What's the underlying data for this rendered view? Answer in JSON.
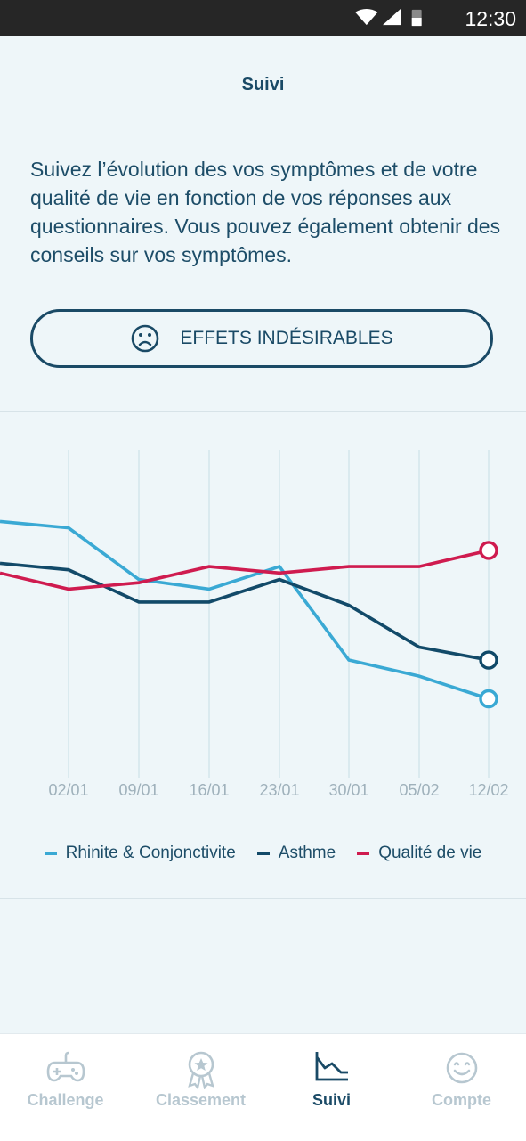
{
  "status_bar": {
    "time": "12:30"
  },
  "header": {
    "title": "Suivi"
  },
  "intro": {
    "text": "Suivez l’évolution des vos symptômes et de votre qualité de vie en fonction de vos réponses aux questionnaires. Vous pouvez également obtenir des conseils sur vos symptômes."
  },
  "effects_button": {
    "label": "EFFETS INDÉSIRABLES",
    "icon": "sad-face-icon"
  },
  "colors": {
    "rhinite": "#3aa9d4",
    "asthme": "#124a69",
    "qualite": "#cf1b4f",
    "grid": "#d3e6ec",
    "tick": "#9fb1bb"
  },
  "chart_data": {
    "type": "line",
    "categories": [
      "02/01",
      "09/01",
      "16/01",
      "23/01",
      "30/01",
      "05/02",
      "12/02"
    ],
    "series": [
      {
        "name": "Rhinite & Conjonctivite",
        "values": [
          7.8,
          6.2,
          5.9,
          6.6,
          3.7,
          3.2,
          2.5
        ],
        "start": 8.0
      },
      {
        "name": "Asthme",
        "values": [
          6.5,
          5.5,
          5.5,
          6.2,
          5.4,
          4.1,
          3.7
        ],
        "start": 6.7
      },
      {
        "name": "Qualité de vie",
        "values": [
          5.9,
          6.1,
          6.6,
          6.4,
          6.6,
          6.6,
          7.1
        ],
        "start": 6.4
      }
    ],
    "ylim": [
      0,
      10
    ],
    "grid": true,
    "legend_position": "bottom"
  },
  "nav": {
    "items": [
      {
        "label": "Challenge",
        "icon": "gamepad-icon",
        "active": false
      },
      {
        "label": "Classement",
        "icon": "medal-icon",
        "active": false
      },
      {
        "label": "Suivi",
        "icon": "chart-icon",
        "active": true
      },
      {
        "label": "Compte",
        "icon": "smiley-icon",
        "active": false
      }
    ]
  }
}
